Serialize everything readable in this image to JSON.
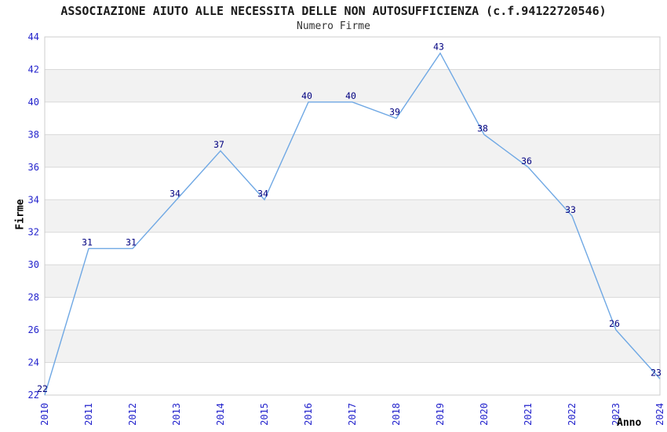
{
  "chart_data": {
    "type": "line",
    "title": "ASSOCIAZIONE AIUTO ALLE NECESSITA DELLE NON AUTOSUFFICIENZA (c.f.94122720546)",
    "subtitle": "Numero Firme",
    "xlabel": "Anno",
    "ylabel": "Firme",
    "categories": [
      "2010",
      "2011",
      "2012",
      "2013",
      "2014",
      "2015",
      "2016",
      "2017",
      "2018",
      "2019",
      "2020",
      "2021",
      "2022",
      "2023",
      "2024"
    ],
    "series": [
      {
        "name": "Numero Firme",
        "values": [
          22,
          31,
          31,
          34,
          37,
          34,
          40,
          40,
          39,
          43,
          38,
          36,
          33,
          26,
          23
        ]
      }
    ],
    "ylim": [
      22,
      44
    ],
    "ytick_step": 2,
    "grid": true,
    "alternating_bands": true,
    "legend": "none",
    "colors": {
      "line": "#6fa8e4",
      "tick_label": "#2323cc",
      "data_label": "#000080",
      "band": "#f2f2f2",
      "gridline": "#d9d9d9",
      "border": "#cccccc"
    }
  }
}
